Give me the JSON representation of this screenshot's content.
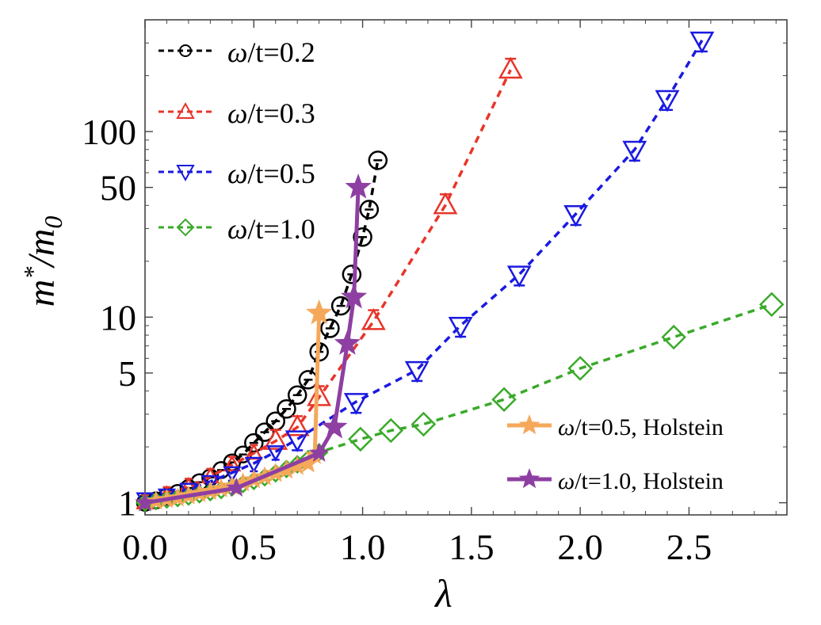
{
  "chart_data": {
    "type": "line",
    "xscale": "linear",
    "yscale": "log",
    "xlabel": "λ",
    "ylabel_parts": {
      "m": "m",
      "star": "*",
      "slash": "/",
      "m0_base": "m",
      "m0_sub": "0"
    },
    "xlim": [
      0.0,
      2.95
    ],
    "ylim": [
      0.86,
      400
    ],
    "xticks": [
      0.0,
      0.5,
      1.0,
      1.5,
      2.0,
      2.5
    ],
    "xtick_labels": [
      "0.0",
      "0.5",
      "1.0",
      "1.5",
      "2.0",
      "2.5"
    ],
    "yticks": [
      1,
      5,
      10,
      50,
      100
    ],
    "ytick_labels": [
      "1",
      "5",
      "10",
      "50",
      "100"
    ],
    "series": [
      {
        "name": "ω/t=0.2",
        "label": {
          "omega": "ω",
          "rest": "/t=0.2"
        },
        "color": "#000000",
        "marker": "circle",
        "line": "dashed",
        "x": [
          0.0,
          0.05,
          0.1,
          0.15,
          0.2,
          0.25,
          0.3,
          0.35,
          0.4,
          0.45,
          0.5,
          0.55,
          0.6,
          0.65,
          0.7,
          0.75,
          0.8,
          0.85,
          0.9,
          0.95,
          1.0,
          1.03,
          1.07
        ],
        "y": [
          1.0,
          1.03,
          1.08,
          1.13,
          1.2,
          1.29,
          1.37,
          1.5,
          1.65,
          1.82,
          2.1,
          2.4,
          2.75,
          3.2,
          3.8,
          4.6,
          6.5,
          8.7,
          11.5,
          17,
          27,
          38,
          70
        ]
      },
      {
        "name": "ω/t=0.3",
        "label": {
          "omega": "ω",
          "rest": "/t=0.3"
        },
        "color": "#e8352a",
        "marker": "triangle-up",
        "line": "dashed",
        "x": [
          0.0,
          0.1,
          0.2,
          0.3,
          0.4,
          0.5,
          0.6,
          0.7,
          0.8,
          1.05,
          1.38,
          1.68
        ],
        "y": [
          1.0,
          1.1,
          1.22,
          1.38,
          1.6,
          1.85,
          2.15,
          2.55,
          3.7,
          9.5,
          40,
          215
        ]
      },
      {
        "name": "ω/t=0.5",
        "label": {
          "omega": "ω",
          "rest": "/t=0.5"
        },
        "color": "#1a1ae0",
        "marker": "triangle-down",
        "line": "dashed",
        "x": [
          0.0,
          0.1,
          0.2,
          0.3,
          0.4,
          0.5,
          0.6,
          0.7,
          0.97,
          1.25,
          1.45,
          1.72,
          1.98,
          2.25,
          2.4,
          2.56
        ],
        "y": [
          1.05,
          1.1,
          1.18,
          1.3,
          1.45,
          1.63,
          1.88,
          2.2,
          3.5,
          5.2,
          9,
          17,
          36,
          80,
          150,
          310
        ]
      },
      {
        "name": "ω/t=1.0",
        "label": {
          "omega": "ω",
          "rest": "/t=1.0"
        },
        "color": "#3aaa2a",
        "marker": "diamond",
        "line": "dashed",
        "x": [
          0.0,
          0.05,
          0.1,
          0.15,
          0.2,
          0.25,
          0.3,
          0.35,
          0.4,
          0.45,
          0.5,
          0.55,
          0.6,
          0.65,
          0.7,
          0.75,
          0.8,
          0.99,
          1.13,
          1.28,
          1.65,
          2.0,
          2.43,
          2.88
        ],
        "y": [
          1.0,
          1.02,
          1.04,
          1.06,
          1.08,
          1.11,
          1.14,
          1.17,
          1.21,
          1.26,
          1.31,
          1.37,
          1.44,
          1.52,
          1.61,
          1.72,
          1.87,
          2.2,
          2.45,
          2.65,
          3.6,
          5.3,
          7.8,
          11.7
        ]
      },
      {
        "name": "ω/t=0.5, Holstein",
        "label": {
          "omega": "ω",
          "rest": "/t=0.5, Holstein"
        },
        "color": "#f5a85a",
        "marker": "star",
        "line": "solid",
        "x": [
          0.0,
          0.05,
          0.1,
          0.15,
          0.2,
          0.25,
          0.3,
          0.35,
          0.4,
          0.45,
          0.5,
          0.55,
          0.6,
          0.65,
          0.7,
          0.75,
          0.78,
          0.8
        ],
        "y": [
          1.0,
          1.02,
          1.04,
          1.06,
          1.09,
          1.12,
          1.15,
          1.19,
          1.23,
          1.28,
          1.33,
          1.38,
          1.44,
          1.5,
          1.57,
          1.62,
          1.8,
          10.5
        ]
      },
      {
        "name": "ω/t=1.0, Holstein",
        "label": {
          "omega": "ω",
          "rest": "/t=1.0, Holstein"
        },
        "color": "#8e3fa2",
        "marker": "star",
        "line": "solid",
        "x": [
          0.0,
          0.42,
          0.8,
          0.87,
          0.93,
          0.96,
          0.98
        ],
        "y": [
          1.0,
          1.2,
          1.85,
          2.55,
          7.2,
          12.8,
          50
        ]
      }
    ]
  }
}
